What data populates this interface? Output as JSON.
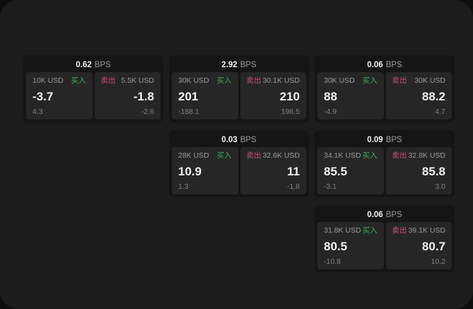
{
  "labels": {
    "bps_unit": "BPS",
    "buy": "买入",
    "sell": "卖出"
  },
  "colors": {
    "canvas": "#0e0e0e",
    "screen_bg": "#1c1c1c",
    "card_bg": "#151515",
    "panel_bg": "#262626",
    "buy_green": "#3fae62",
    "sell_red": "#c94f6d",
    "text_primary": "#f2f2f2",
    "text_secondary": "#9c9c9c",
    "text_tertiary": "#828282"
  },
  "cards": [
    {
      "bps": "0.62",
      "buy": {
        "amount": "10K USD",
        "price": "-3.7",
        "change": "4.3"
      },
      "sell": {
        "amount": "5.5K USD",
        "price": "-1.8",
        "change": "-2.6"
      }
    },
    {
      "bps": "2.92",
      "buy": {
        "amount": "30K USD",
        "price": "201",
        "change": "-188.1"
      },
      "sell": {
        "amount": "30.1K USD",
        "price": "210",
        "change": "196.5"
      }
    },
    {
      "bps": "0.06",
      "buy": {
        "amount": "30K USD",
        "price": "88",
        "change": "-4.9"
      },
      "sell": {
        "amount": "30K USD",
        "price": "88.2",
        "change": "4.7"
      }
    },
    {
      "bps": "0.03",
      "buy": {
        "amount": "28K USD",
        "price": "10.9",
        "change": "1.3"
      },
      "sell": {
        "amount": "32.6K USD",
        "price": "11",
        "change": "-1.8"
      }
    },
    {
      "bps": "0.09",
      "buy": {
        "amount": "34.1K USD",
        "price": "85.5",
        "change": "-3.1"
      },
      "sell": {
        "amount": "32.8K USD",
        "price": "85.8",
        "change": "3.0"
      }
    },
    {
      "bps": "0.06",
      "buy": {
        "amount": "31.8K USD",
        "price": "80.5",
        "change": "-10.8"
      },
      "sell": {
        "amount": "39.1K USD",
        "price": "80.7",
        "change": "10.2"
      }
    }
  ]
}
